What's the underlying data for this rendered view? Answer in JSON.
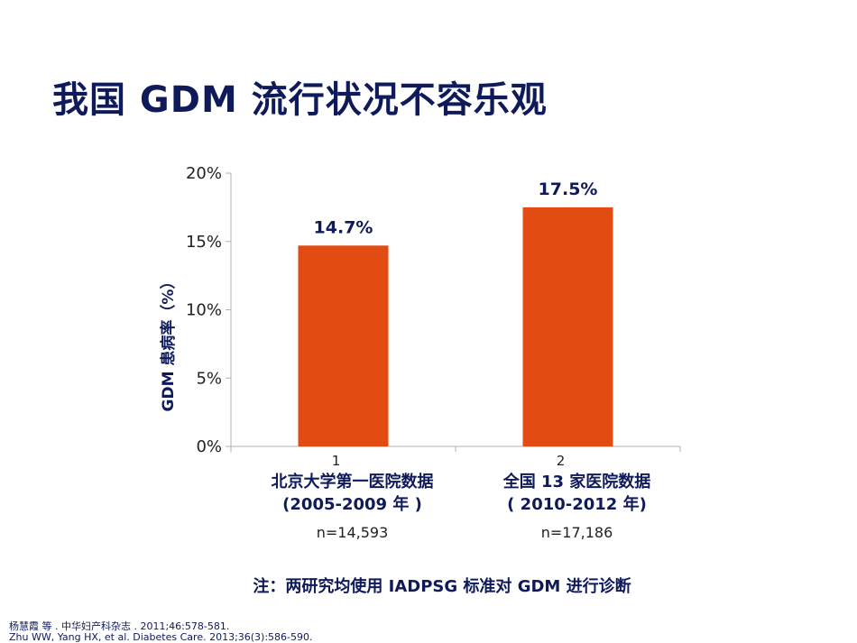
{
  "slide": {
    "title": "我国 GDM 流行状况不容乐观",
    "note": "注：两研究均使用 IADPSG 标准对 GDM 进行诊断",
    "references": [
      "杨慧霞 等 . 中华妇产科杂志 . 2011;46:578-581.",
      "Zhu WW, Yang HX, et al. Diabetes Care. 2013;36(3):586-590."
    ]
  },
  "chart_data": {
    "type": "bar",
    "title": "",
    "ylabel": "GDM 患病率（%）",
    "ylim": [
      0,
      20
    ],
    "yticks": [
      "0%",
      "5%",
      "10%",
      "15%",
      "20%"
    ],
    "grid": false,
    "bar_color": "#e24b12",
    "categories": [
      {
        "index": "1",
        "name": "北京大学第一医院数据",
        "period": "(2005-2009 年 )",
        "n": "n=14,593"
      },
      {
        "index": "2",
        "name": "全国 13 家医院数据",
        "period": "( 2010-2012 年)",
        "n": "n=17,186"
      }
    ],
    "values": [
      14.7,
      17.5
    ],
    "data_labels": [
      "14.7%",
      "17.5%"
    ]
  }
}
